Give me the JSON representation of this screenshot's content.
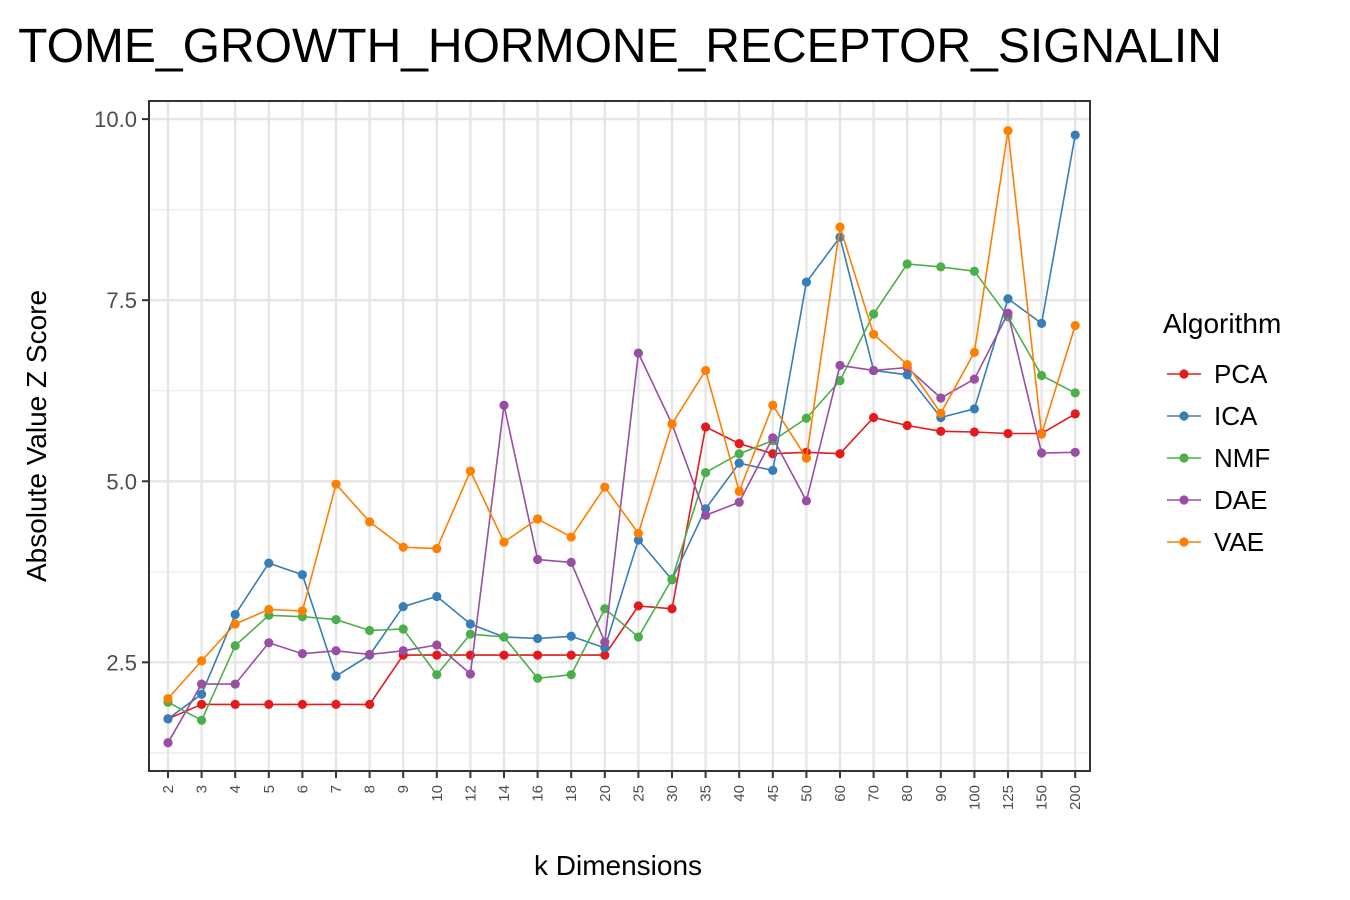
{
  "chart_data": {
    "type": "line",
    "title": "TOME_GROWTH_HORMONE_RECEPTOR_SIGNALIN",
    "xlabel": "k Dimensions",
    "ylabel": "Absolute Value Z Score",
    "categories": [
      "2",
      "3",
      "4",
      "5",
      "6",
      "7",
      "8",
      "9",
      "10",
      "12",
      "14",
      "16",
      "18",
      "20",
      "25",
      "30",
      "35",
      "40",
      "45",
      "50",
      "60",
      "70",
      "80",
      "90",
      "100",
      "125",
      "150",
      "200"
    ],
    "yticks": [
      "2.5",
      "5.0",
      "7.5",
      "10.0"
    ],
    "ylim": [
      1.0,
      10.25
    ],
    "grid": true,
    "legend": {
      "title": "Algorithm",
      "position": "right"
    },
    "series": [
      {
        "name": "PCA",
        "color": "#E41A1C",
        "values": [
          1.72,
          1.92,
          1.92,
          1.92,
          1.92,
          1.92,
          1.92,
          2.6,
          2.6,
          2.6,
          2.6,
          2.6,
          2.6,
          2.6,
          3.28,
          3.24,
          5.75,
          5.52,
          5.38,
          5.4,
          5.38,
          5.88,
          5.77,
          5.69,
          5.68,
          5.66,
          5.66,
          5.93
        ]
      },
      {
        "name": "ICA",
        "color": "#377EB8",
        "values": [
          1.72,
          2.06,
          3.16,
          3.87,
          3.71,
          2.31,
          2.6,
          3.27,
          3.41,
          3.03,
          2.85,
          2.83,
          2.86,
          2.7,
          4.19,
          3.64,
          4.62,
          5.25,
          5.15,
          7.75,
          8.37,
          6.53,
          6.47,
          5.88,
          6.0,
          7.52,
          7.18,
          9.78
        ]
      },
      {
        "name": "NMF",
        "color": "#4DAF4A",
        "values": [
          1.95,
          1.7,
          2.73,
          3.15,
          3.13,
          3.09,
          2.94,
          2.96,
          2.33,
          2.89,
          2.85,
          2.28,
          2.33,
          3.24,
          2.85,
          3.65,
          5.12,
          5.38,
          5.56,
          5.87,
          6.39,
          7.31,
          8.0,
          7.96,
          7.9,
          7.27,
          6.46,
          6.22
        ]
      },
      {
        "name": "DAE",
        "color": "#984EA3",
        "values": [
          1.39,
          2.2,
          2.2,
          2.77,
          2.62,
          2.66,
          2.61,
          2.66,
          2.74,
          2.34,
          6.05,
          3.92,
          3.88,
          2.78,
          6.77,
          5.79,
          4.53,
          4.71,
          5.6,
          4.73,
          6.6,
          6.53,
          6.57,
          6.15,
          6.41,
          7.32,
          5.39,
          5.4
        ]
      },
      {
        "name": "VAE",
        "color": "#FF7F00",
        "values": [
          2.0,
          2.52,
          3.03,
          3.23,
          3.21,
          4.96,
          4.44,
          4.09,
          4.07,
          5.14,
          4.16,
          4.48,
          4.23,
          4.92,
          4.28,
          5.79,
          6.53,
          4.86,
          6.05,
          5.32,
          8.51,
          7.03,
          6.61,
          5.94,
          6.78,
          9.84,
          5.65,
          7.15
        ]
      }
    ]
  }
}
